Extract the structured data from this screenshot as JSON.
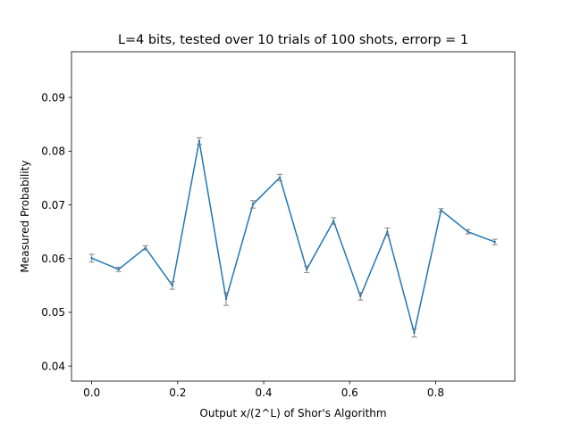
{
  "chart_data": {
    "type": "line",
    "title": "L=4 bits, tested over 10 trials of 100 shots, errorp = 1",
    "xlabel": "Output x/(2^L) of Shor's Algorithm",
    "ylabel": "Measured Probability",
    "xlim": [
      -0.047,
      0.984
    ],
    "ylim": [
      0.0372,
      0.0985
    ],
    "xticks": [
      0.0,
      0.2,
      0.4,
      0.6,
      0.8
    ],
    "xtick_labels": [
      "0.0",
      "0.2",
      "0.4",
      "0.6",
      "0.8"
    ],
    "yticks": [
      0.04,
      0.05,
      0.06,
      0.07,
      0.08,
      0.09
    ],
    "ytick_labels": [
      "0.04",
      "0.05",
      "0.06",
      "0.07",
      "0.08",
      "0.09"
    ],
    "grid": false,
    "series": [
      {
        "color": "#1f77b4",
        "errorbar_color": "#808080",
        "x": [
          0.0,
          0.0625,
          0.125,
          0.1875,
          0.25,
          0.3125,
          0.375,
          0.4375,
          0.5,
          0.5625,
          0.625,
          0.6875,
          0.75,
          0.8125,
          0.875,
          0.9375
        ],
        "y": [
          0.0601,
          0.058,
          0.062,
          0.055,
          0.0819,
          0.0525,
          0.0701,
          0.0751,
          0.058,
          0.067,
          0.053,
          0.065,
          0.0462,
          0.069,
          0.065,
          0.0631
        ],
        "yerr": [
          0.0007,
          0.0004,
          0.0004,
          0.0007,
          0.0006,
          0.0012,
          0.0007,
          0.0006,
          0.0006,
          0.0006,
          0.0007,
          0.0007,
          0.0008,
          0.0003,
          0.0004,
          0.0005
        ]
      }
    ]
  }
}
